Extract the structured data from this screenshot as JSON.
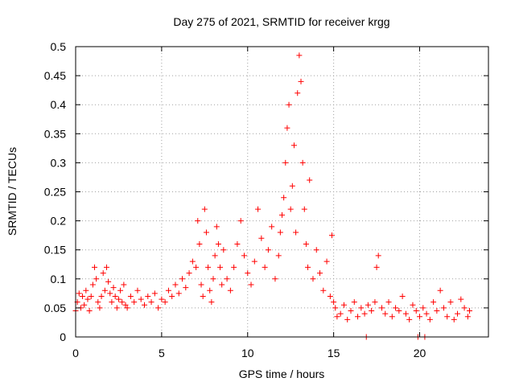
{
  "chart_data": {
    "type": "scatter",
    "title": "Day 275 of 2021, SRMTID for receiver krgg",
    "xlabel": "GPS time / hours",
    "ylabel": "SRMTID / TECUs",
    "xlim": [
      0,
      24
    ],
    "ylim": [
      0,
      0.5
    ],
    "xticks": [
      0,
      5,
      10,
      15,
      20
    ],
    "xtick_labels": [
      "0",
      "5",
      "10",
      "15",
      "20"
    ],
    "yticks": [
      0,
      0.05,
      0.1,
      0.15,
      0.2,
      0.25,
      0.3,
      0.35,
      0.4,
      0.45,
      0.5
    ],
    "ytick_labels": [
      "0",
      "0.05",
      "0.1",
      "0.15",
      "0.2",
      "0.25",
      "0.3",
      "0.35",
      "0.4",
      "0.45",
      "0.5"
    ],
    "grid": true,
    "marker": "+",
    "color": "#ff0000",
    "series": [
      {
        "name": "krgg",
        "x": [
          0.0,
          0.1,
          0.2,
          0.3,
          0.4,
          0.5,
          0.6,
          0.7,
          0.8,
          0.9,
          1.0,
          1.1,
          1.2,
          1.3,
          1.4,
          1.5,
          1.6,
          1.7,
          1.8,
          1.9,
          2.0,
          2.1,
          2.2,
          2.3,
          2.4,
          2.5,
          2.6,
          2.7,
          2.8,
          2.9,
          3.0,
          3.2,
          3.4,
          3.6,
          3.8,
          4.0,
          4.2,
          4.4,
          4.6,
          4.8,
          5.0,
          5.2,
          5.4,
          5.6,
          5.8,
          6.0,
          6.2,
          6.4,
          6.6,
          6.8,
          7.0,
          7.1,
          7.2,
          7.3,
          7.4,
          7.5,
          7.6,
          7.7,
          7.8,
          7.9,
          8.0,
          8.1,
          8.2,
          8.3,
          8.4,
          8.5,
          8.6,
          8.8,
          9.0,
          9.2,
          9.4,
          9.6,
          9.8,
          10.0,
          10.2,
          10.4,
          10.6,
          10.8,
          11.0,
          11.2,
          11.4,
          11.6,
          11.8,
          11.9,
          12.0,
          12.1,
          12.2,
          12.3,
          12.4,
          12.5,
          12.6,
          12.7,
          12.8,
          12.9,
          13.0,
          13.1,
          13.2,
          13.3,
          13.4,
          13.5,
          13.6,
          13.8,
          14.0,
          14.2,
          14.4,
          14.6,
          14.8,
          14.9,
          15.0,
          15.1,
          15.2,
          15.4,
          15.6,
          15.8,
          16.0,
          16.2,
          16.4,
          16.6,
          16.8,
          16.9,
          17.0,
          17.2,
          17.4,
          17.5,
          17.6,
          17.8,
          18.0,
          18.2,
          18.4,
          18.6,
          18.8,
          19.0,
          19.2,
          19.4,
          19.6,
          19.8,
          19.9,
          20.0,
          20.2,
          20.3,
          20.4,
          20.6,
          20.8,
          21.0,
          21.2,
          21.4,
          21.6,
          21.8,
          22.0,
          22.2,
          22.4,
          22.6,
          22.8,
          22.9
        ],
        "y": [
          0.045,
          0.06,
          0.075,
          0.05,
          0.07,
          0.055,
          0.08,
          0.065,
          0.045,
          0.07,
          0.09,
          0.12,
          0.1,
          0.06,
          0.05,
          0.07,
          0.11,
          0.08,
          0.12,
          0.095,
          0.075,
          0.06,
          0.085,
          0.07,
          0.05,
          0.065,
          0.08,
          0.06,
          0.09,
          0.055,
          0.05,
          0.07,
          0.06,
          0.08,
          0.065,
          0.055,
          0.07,
          0.06,
          0.075,
          0.05,
          0.065,
          0.06,
          0.08,
          0.07,
          0.09,
          0.075,
          0.1,
          0.085,
          0.11,
          0.13,
          0.12,
          0.2,
          0.16,
          0.09,
          0.07,
          0.22,
          0.18,
          0.12,
          0.08,
          0.06,
          0.1,
          0.14,
          0.19,
          0.16,
          0.12,
          0.09,
          0.15,
          0.1,
          0.08,
          0.12,
          0.16,
          0.2,
          0.14,
          0.11,
          0.09,
          0.13,
          0.22,
          0.17,
          0.12,
          0.15,
          0.19,
          0.1,
          0.14,
          0.18,
          0.21,
          0.24,
          0.3,
          0.36,
          0.4,
          0.22,
          0.26,
          0.33,
          0.18,
          0.42,
          0.485,
          0.44,
          0.3,
          0.22,
          0.16,
          0.12,
          0.27,
          0.1,
          0.15,
          0.11,
          0.08,
          0.13,
          0.07,
          0.175,
          0.06,
          0.05,
          0.035,
          0.04,
          0.055,
          0.03,
          0.045,
          0.06,
          0.035,
          0.05,
          0.04,
          0.0,
          0.055,
          0.045,
          0.06,
          0.12,
          0.14,
          0.05,
          0.04,
          0.06,
          0.035,
          0.05,
          0.045,
          0.07,
          0.04,
          0.03,
          0.055,
          0.045,
          0.0,
          0.035,
          0.05,
          0.0,
          0.04,
          0.03,
          0.06,
          0.045,
          0.08,
          0.05,
          0.035,
          0.06,
          0.03,
          0.04,
          0.065,
          0.05,
          0.035,
          0.045
        ]
      }
    ]
  }
}
